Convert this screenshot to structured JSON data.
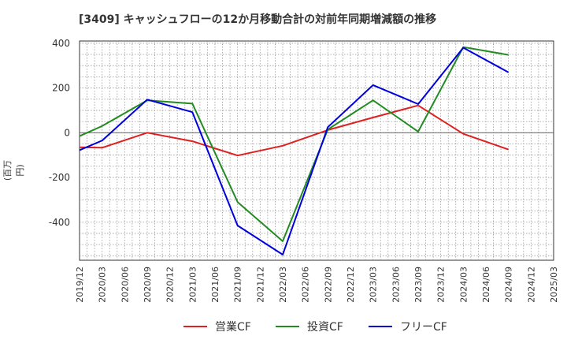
{
  "title": "[3409]  キャッシュフローの12か月移動合計の対前年同期増減額の推移",
  "ylabel": "(百万円)",
  "chart_data": {
    "type": "line",
    "title": "[3409]  キャッシュフローの12か月移動合計の対前年同期増減額の推移",
    "xlabel": "",
    "ylabel": "(百万円)",
    "ylim": [
      -570,
      410
    ],
    "yticks": [
      400,
      200,
      0,
      -200,
      -400
    ],
    "x_ticks": [
      "2019/12",
      "2020/03",
      "2020/06",
      "2020/09",
      "2020/12",
      "2021/03",
      "2021/06",
      "2021/09",
      "2021/12",
      "2022/03",
      "2022/06",
      "2022/09",
      "2022/12",
      "2023/03",
      "2023/06",
      "2023/09",
      "2023/12",
      "2024/03",
      "2024/06",
      "2024/09",
      "2024/12",
      "2025/03"
    ],
    "grid": true,
    "legend_position": "bottom",
    "series": [
      {
        "name": "営業CF",
        "color": "#dd2020",
        "x": [
          "2019/12",
          "2020/03",
          "2020/09",
          "2021/03",
          "2021/09",
          "2022/03",
          "2022/09",
          "2023/03",
          "2023/09",
          "2024/03",
          "2024/09"
        ],
        "values": [
          -65,
          -67,
          0,
          -38,
          -102,
          -58,
          12,
          68,
          122,
          -5,
          -75
        ]
      },
      {
        "name": "投資CF",
        "color": "#228b22",
        "x": [
          "2019/12",
          "2020/03",
          "2020/09",
          "2021/03",
          "2021/09",
          "2022/03",
          "2022/09",
          "2023/03",
          "2023/09",
          "2024/03",
          "2024/09"
        ],
        "values": [
          -15,
          30,
          145,
          130,
          -310,
          -485,
          15,
          145,
          5,
          383,
          348
        ]
      },
      {
        "name": "フリーCF",
        "color": "#0000dd",
        "x": [
          "2019/12",
          "2020/03",
          "2020/09",
          "2021/03",
          "2021/09",
          "2022/03",
          "2022/09",
          "2023/03",
          "2023/09",
          "2024/03",
          "2024/09"
        ],
        "values": [
          -78,
          -35,
          148,
          92,
          -415,
          -545,
          25,
          213,
          128,
          380,
          270
        ]
      }
    ]
  }
}
